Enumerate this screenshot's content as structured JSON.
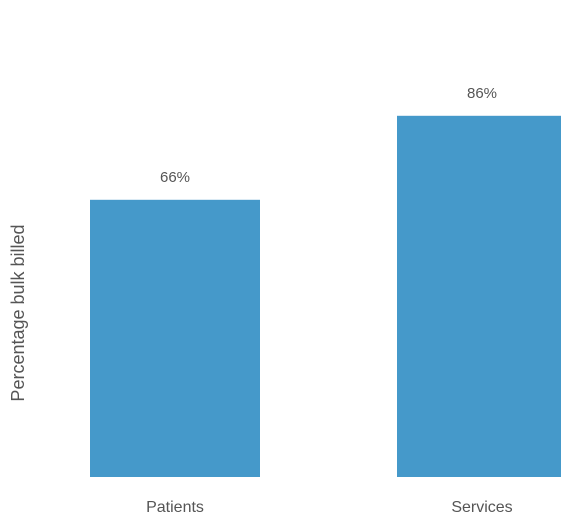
{
  "chart_data": {
    "type": "bar",
    "title": "",
    "xlabel": "",
    "ylabel": "Percentage bulk billed",
    "categories": [
      "Patients",
      "Services"
    ],
    "values": [
      66,
      86
    ],
    "value_labels": [
      "66%",
      "86%"
    ],
    "ylim": [
      0,
      100
    ],
    "grid": false,
    "legend": "none",
    "bar_color": "#4599ca"
  }
}
